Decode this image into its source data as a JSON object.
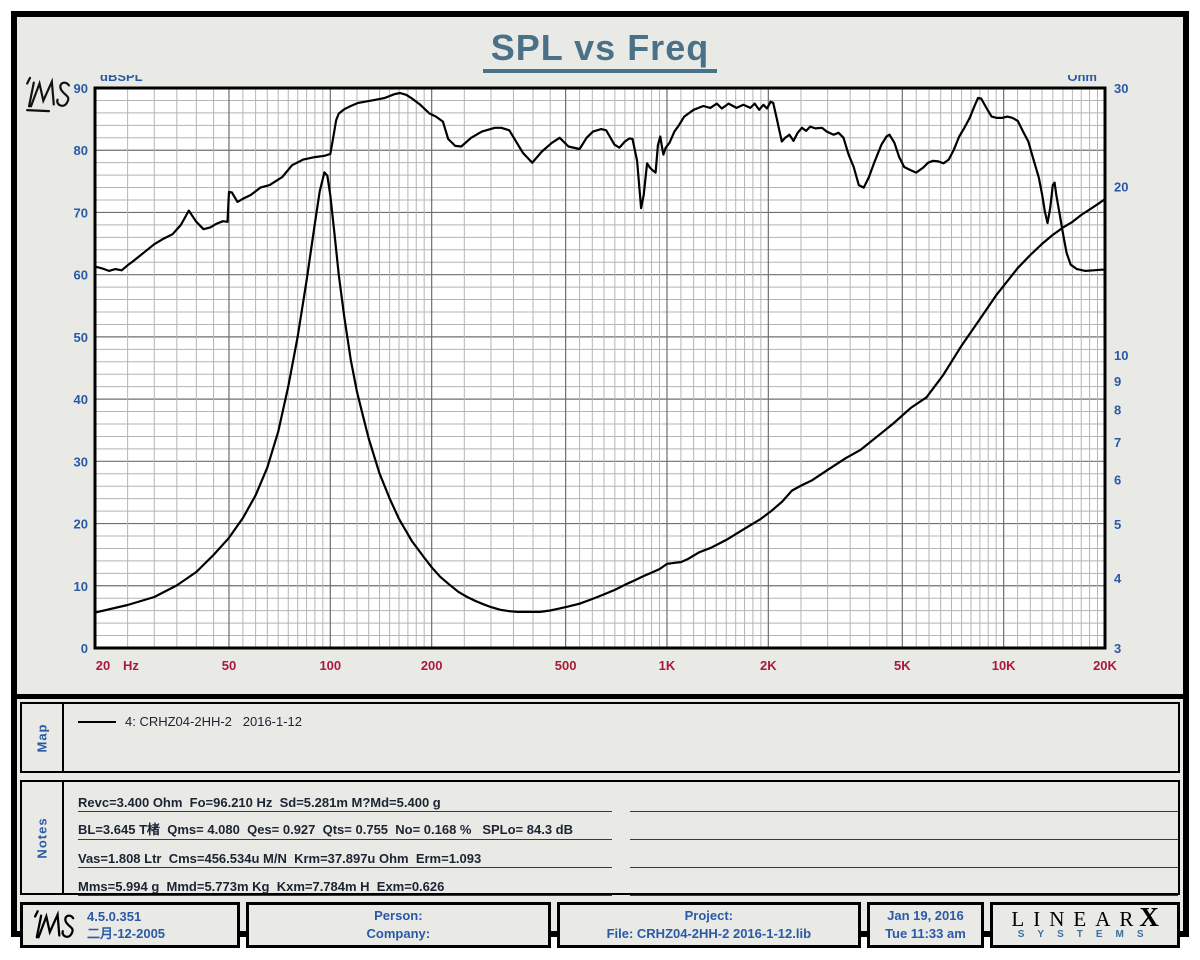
{
  "title": "SPL vs Freq",
  "colors": {
    "page_bg": "#e9e9e6",
    "title": "#4a7187",
    "axis_blue": "#2a5aa5",
    "freq_red": "#a81a38",
    "grid_minor": "#b5b5b5",
    "grid_major": "#6f6f6f",
    "curve": "#000000",
    "text_dark": "#1c2433"
  },
  "chart_data": {
    "type": "line",
    "title": "SPL vs Freq",
    "x_axis": {
      "unit": "Hz",
      "scale": "log",
      "min": 20,
      "max": 20000,
      "ticks": [
        {
          "t": "20",
          "v": 20
        },
        {
          "t": "50",
          "v": 50
        },
        {
          "t": "100",
          "v": 100
        },
        {
          "t": "200",
          "v": 200
        },
        {
          "t": "500",
          "v": 500
        },
        {
          "t": "1K",
          "v": 1000
        },
        {
          "t": "2K",
          "v": 2000
        },
        {
          "t": "5K",
          "v": 5000
        },
        {
          "t": "10K",
          "v": 10000
        },
        {
          "t": "20K",
          "v": 20000
        }
      ]
    },
    "y_left": {
      "label": "dBSPL",
      "scale": "linear",
      "min": 0,
      "max": 90,
      "grid_step": 2,
      "ticks": [
        90,
        80,
        70,
        60,
        50,
        40,
        30,
        20,
        10,
        0
      ]
    },
    "y_right": {
      "label": "Ohm",
      "scale": "log",
      "min": 3,
      "max": 30,
      "ticks": [
        30,
        20,
        10,
        9,
        8,
        7,
        6,
        5,
        4,
        3
      ]
    },
    "watermark": "LMS",
    "series": [
      {
        "name": "SPL  4: CRHZ04-2HH-2  2016-1-12",
        "axis": "left",
        "unit": "dBSPL",
        "color": "#000000",
        "points": [
          [
            20,
            61.3
          ],
          [
            21,
            61.0
          ],
          [
            22,
            60.6
          ],
          [
            23,
            60.9
          ],
          [
            24,
            60.7
          ],
          [
            25,
            61.5
          ],
          [
            26,
            62.2
          ],
          [
            28,
            63.6
          ],
          [
            30,
            64.9
          ],
          [
            32,
            65.8
          ],
          [
            34,
            66.5
          ],
          [
            36,
            68.0
          ],
          [
            38,
            70.3
          ],
          [
            40,
            68.5
          ],
          [
            42,
            67.3
          ],
          [
            44,
            67.6
          ],
          [
            46,
            68.2
          ],
          [
            48,
            68.6
          ],
          [
            49.5,
            68.5
          ],
          [
            50,
            73.3
          ],
          [
            51,
            73.2
          ],
          [
            53,
            71.7
          ],
          [
            55,
            72.2
          ],
          [
            58,
            72.8
          ],
          [
            62,
            74.0
          ],
          [
            66,
            74.4
          ],
          [
            72,
            75.7
          ],
          [
            77,
            77.6
          ],
          [
            83,
            78.5
          ],
          [
            90,
            78.9
          ],
          [
            96,
            79.1
          ],
          [
            100,
            79.4
          ],
          [
            102,
            82.0
          ],
          [
            104,
            84.8
          ],
          [
            106,
            85.9
          ],
          [
            110,
            86.6
          ],
          [
            115,
            87.1
          ],
          [
            121,
            87.6
          ],
          [
            133,
            88.0
          ],
          [
            145,
            88.4
          ],
          [
            155,
            89.0
          ],
          [
            161,
            89.2
          ],
          [
            168,
            88.9
          ],
          [
            175,
            88.3
          ],
          [
            185,
            87.3
          ],
          [
            197,
            85.9
          ],
          [
            206,
            85.4
          ],
          [
            216,
            84.6
          ],
          [
            224,
            81.8
          ],
          [
            235,
            80.7
          ],
          [
            245,
            80.6
          ],
          [
            262,
            82.0
          ],
          [
            282,
            83.0
          ],
          [
            308,
            83.6
          ],
          [
            322,
            83.6
          ],
          [
            340,
            83.2
          ],
          [
            373,
            79.6
          ],
          [
            398,
            78.0
          ],
          [
            425,
            79.8
          ],
          [
            455,
            81.2
          ],
          [
            480,
            82.0
          ],
          [
            510,
            80.6
          ],
          [
            550,
            80.2
          ],
          [
            577,
            82.0
          ],
          [
            603,
            83.0
          ],
          [
            638,
            83.4
          ],
          [
            660,
            83.2
          ],
          [
            698,
            80.9
          ],
          [
            722,
            80.4
          ],
          [
            750,
            81.4
          ],
          [
            774,
            81.9
          ],
          [
            790,
            81.8
          ],
          [
            815,
            78.3
          ],
          [
            838,
            70.7
          ],
          [
            853,
            72.8
          ],
          [
            873,
            77.9
          ],
          [
            890,
            77.2
          ],
          [
            905,
            76.8
          ],
          [
            925,
            76.4
          ],
          [
            940,
            80.8
          ],
          [
            955,
            82.2
          ],
          [
            966,
            80.6
          ],
          [
            976,
            79.3
          ],
          [
            991,
            80.4
          ],
          [
            1017,
            81.2
          ],
          [
            1052,
            83.0
          ],
          [
            1088,
            84.1
          ],
          [
            1125,
            85.4
          ],
          [
            1200,
            86.5
          ],
          [
            1283,
            87.1
          ],
          [
            1345,
            86.8
          ],
          [
            1407,
            87.5
          ],
          [
            1455,
            86.7
          ],
          [
            1524,
            87.5
          ],
          [
            1609,
            86.8
          ],
          [
            1687,
            87.3
          ],
          [
            1768,
            86.8
          ],
          [
            1822,
            87.5
          ],
          [
            1877,
            86.5
          ],
          [
            1934,
            87.3
          ],
          [
            1982,
            86.7
          ],
          [
            2031,
            87.8
          ],
          [
            2068,
            87.6
          ],
          [
            2117,
            85.2
          ],
          [
            2155,
            83.3
          ],
          [
            2193,
            81.4
          ],
          [
            2244,
            82.0
          ],
          [
            2310,
            82.5
          ],
          [
            2376,
            81.5
          ],
          [
            2445,
            82.8
          ],
          [
            2516,
            83.6
          ],
          [
            2589,
            83.1
          ],
          [
            2664,
            83.8
          ],
          [
            2757,
            83.5
          ],
          [
            2886,
            83.6
          ],
          [
            2984,
            83.0
          ],
          [
            3128,
            82.5
          ],
          [
            3235,
            82.8
          ],
          [
            3345,
            82.0
          ],
          [
            3463,
            79.3
          ],
          [
            3585,
            77.3
          ],
          [
            3712,
            74.4
          ],
          [
            3839,
            74.0
          ],
          [
            3972,
            75.6
          ],
          [
            4141,
            78.2
          ],
          [
            4337,
            80.9
          ],
          [
            4487,
            82.2
          ],
          [
            4580,
            82.5
          ],
          [
            4737,
            81.2
          ],
          [
            4895,
            78.9
          ],
          [
            5065,
            77.3
          ],
          [
            5243,
            76.9
          ],
          [
            5496,
            76.4
          ],
          [
            5767,
            77.2
          ],
          [
            5963,
            78.0
          ],
          [
            6173,
            78.3
          ],
          [
            6394,
            78.2
          ],
          [
            6625,
            77.9
          ],
          [
            6866,
            78.5
          ],
          [
            7117,
            80.1
          ],
          [
            7377,
            82.2
          ],
          [
            7647,
            83.6
          ],
          [
            7927,
            85.2
          ],
          [
            8218,
            87.3
          ],
          [
            8394,
            88.4
          ],
          [
            8574,
            88.3
          ],
          [
            8886,
            86.8
          ],
          [
            9210,
            85.4
          ],
          [
            9546,
            85.2
          ],
          [
            9894,
            85.2
          ],
          [
            10255,
            85.4
          ],
          [
            10629,
            85.2
          ],
          [
            11017,
            84.7
          ],
          [
            11419,
            83.0
          ],
          [
            11835,
            81.4
          ],
          [
            12266,
            78.5
          ],
          [
            12713,
            75.6
          ],
          [
            13020,
            72.8
          ],
          [
            13257,
            70.1
          ],
          [
            13500,
            68.3
          ],
          [
            13746,
            70.7
          ],
          [
            13995,
            74.4
          ],
          [
            14164,
            74.8
          ],
          [
            14334,
            72.8
          ],
          [
            14680,
            69.6
          ],
          [
            15028,
            66.4
          ],
          [
            15376,
            63.5
          ],
          [
            15817,
            61.6
          ],
          [
            16500,
            60.9
          ],
          [
            17500,
            60.6
          ],
          [
            18500,
            60.7
          ],
          [
            19500,
            60.8
          ],
          [
            20000,
            60.8
          ]
        ]
      },
      {
        "name": "Impedance",
        "axis": "right",
        "unit": "Ohm",
        "color": "#000000",
        "points": [
          [
            20,
            3.47
          ],
          [
            25,
            3.58
          ],
          [
            30,
            3.7
          ],
          [
            35,
            3.88
          ],
          [
            40,
            4.1
          ],
          [
            45,
            4.4
          ],
          [
            50,
            4.72
          ],
          [
            55,
            5.12
          ],
          [
            60,
            5.62
          ],
          [
            65,
            6.3
          ],
          [
            70,
            7.3
          ],
          [
            75,
            8.8
          ],
          [
            80,
            10.8
          ],
          [
            85,
            13.6
          ],
          [
            90,
            17.2
          ],
          [
            93,
            19.6
          ],
          [
            96,
            21.2
          ],
          [
            98,
            20.9
          ],
          [
            100,
            19.3
          ],
          [
            103,
            16.4
          ],
          [
            106,
            13.9
          ],
          [
            110,
            11.7
          ],
          [
            115,
            9.8
          ],
          [
            120,
            8.6
          ],
          [
            125,
            7.8
          ],
          [
            130,
            7.1
          ],
          [
            140,
            6.15
          ],
          [
            150,
            5.55
          ],
          [
            160,
            5.1
          ],
          [
            175,
            4.65
          ],
          [
            190,
            4.35
          ],
          [
            200,
            4.18
          ],
          [
            212,
            4.02
          ],
          [
            225,
            3.9
          ],
          [
            240,
            3.78
          ],
          [
            255,
            3.7
          ],
          [
            270,
            3.64
          ],
          [
            285,
            3.59
          ],
          [
            300,
            3.55
          ],
          [
            320,
            3.51
          ],
          [
            340,
            3.49
          ],
          [
            360,
            3.48
          ],
          [
            390,
            3.48
          ],
          [
            420,
            3.48
          ],
          [
            450,
            3.5
          ],
          [
            480,
            3.53
          ],
          [
            510,
            3.56
          ],
          [
            550,
            3.6
          ],
          [
            600,
            3.67
          ],
          [
            650,
            3.74
          ],
          [
            700,
            3.81
          ],
          [
            750,
            3.89
          ],
          [
            800,
            3.96
          ],
          [
            850,
            4.03
          ],
          [
            900,
            4.09
          ],
          [
            950,
            4.15
          ],
          [
            1000,
            4.24
          ],
          [
            1060,
            4.26
          ],
          [
            1100,
            4.27
          ],
          [
            1150,
            4.32
          ],
          [
            1250,
            4.45
          ],
          [
            1350,
            4.53
          ],
          [
            1500,
            4.68
          ],
          [
            1700,
            4.9
          ],
          [
            1900,
            5.1
          ],
          [
            2050,
            5.28
          ],
          [
            2200,
            5.48
          ],
          [
            2350,
            5.73
          ],
          [
            2500,
            5.85
          ],
          [
            2700,
            5.98
          ],
          [
            3000,
            6.24
          ],
          [
            3400,
            6.55
          ],
          [
            3750,
            6.77
          ],
          [
            4200,
            7.15
          ],
          [
            4700,
            7.55
          ],
          [
            5300,
            8.05
          ],
          [
            5900,
            8.41
          ],
          [
            6600,
            9.2
          ],
          [
            7500,
            10.4
          ],
          [
            8500,
            11.6
          ],
          [
            9500,
            12.8
          ],
          [
            10000,
            13.3
          ],
          [
            11000,
            14.3
          ],
          [
            12000,
            15.1
          ],
          [
            13000,
            15.8
          ],
          [
            14000,
            16.4
          ],
          [
            15000,
            16.9
          ],
          [
            16000,
            17.3
          ],
          [
            17000,
            17.8
          ],
          [
            18000,
            18.2
          ],
          [
            19000,
            18.6
          ],
          [
            20000,
            19.0
          ]
        ]
      }
    ]
  },
  "map": {
    "label": "Map",
    "items": [
      {
        "label": "4: CRHZ04-2HH-2   2016-1-12",
        "color": "#000000"
      }
    ]
  },
  "notes": {
    "label": "Notes",
    "lines": [
      "Revc=3.400 Ohm  Fo=96.210 Hz  Sd=5.281m M?Md=5.400 g",
      "BL=3.645 T楮  Qms= 4.080  Qes= 0.927  Qts= 0.755  No= 0.168 %   SPLo= 84.3 dB",
      "Vas=1.808 Ltr  Cms=456.534u M/N  Krm=37.897u Ohm  Erm=1.093",
      "Mms=5.994 g  Mmd=5.773m Kg  Kxm=7.784m H  Exm=0.626"
    ],
    "blank_right_lines": 4
  },
  "footer": {
    "lms_logo": "LMS",
    "version": "4.5.0.351",
    "version_date": "二月-12-2005",
    "person_label": "Person:",
    "company_label": "Company:",
    "project_label": "Project:",
    "file_label": "File: CRHZ04-2HH-2  2016-1-12.lib",
    "date": "Jan 19, 2016",
    "time": "Tue 11:33 am",
    "brand": {
      "linear": "LINEAR",
      "x": "X",
      "systems": "SYSTEMS"
    }
  }
}
